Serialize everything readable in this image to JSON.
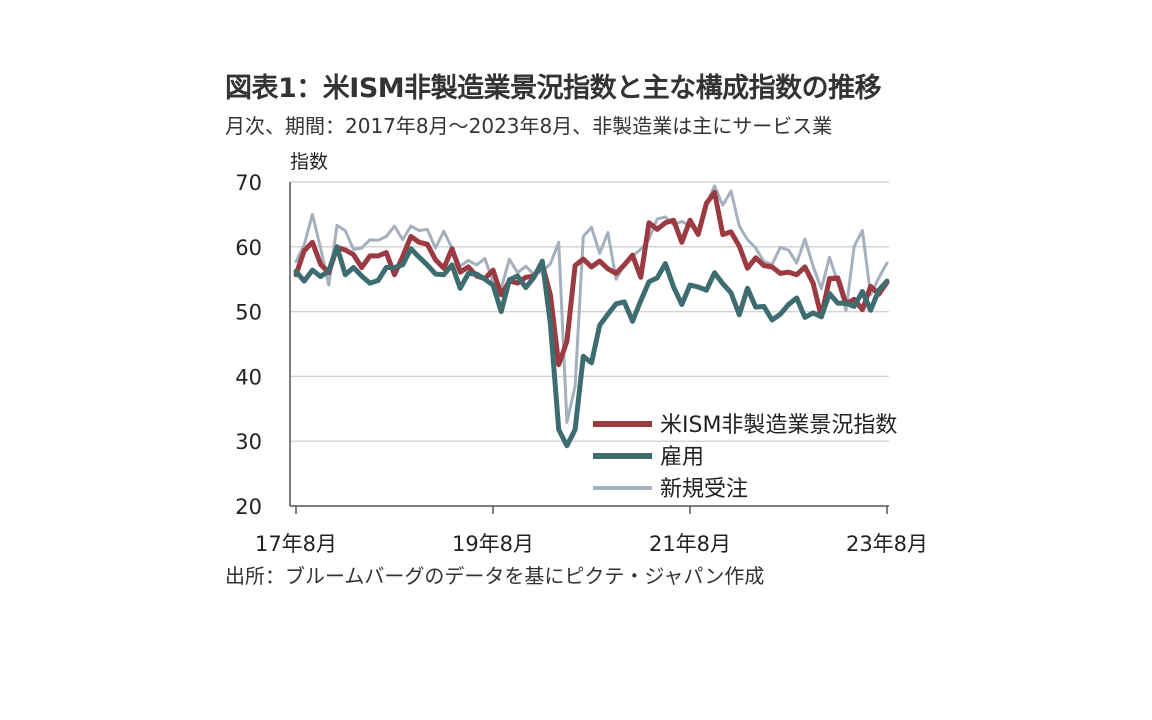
{
  "header": {
    "title": "図表1：米ISM非製造業景況指数と主な構成指数の推移",
    "subtitle": "月次、期間：2017年8月～2023年8月、非製造業は主にサービス業"
  },
  "footer": {
    "source": "出所：ブルームバーグのデータを基にピクテ・ジャパン作成"
  },
  "chart_data": {
    "type": "line",
    "ylabel": "指数",
    "xlabel": "",
    "ylim": [
      20,
      70
    ],
    "yticks": [
      20,
      30,
      40,
      50,
      60,
      70
    ],
    "xtick_labels": [
      "17年8月",
      "19年8月",
      "21年8月",
      "23年8月"
    ],
    "xtick_index": [
      0,
      24,
      48,
      72
    ],
    "grid": true,
    "legend_position": "lower-right",
    "x_start": "2017-08",
    "x_end": "2023-08",
    "series": [
      {
        "name": "米ISM非製造業景況指数",
        "color": "#9b3a40",
        "values": [
          55.7,
          59.4,
          60.7,
          57.3,
          56.0,
          59.9,
          59.5,
          58.8,
          56.8,
          58.6,
          58.6,
          59.1,
          55.7,
          58.5,
          61.6,
          60.7,
          60.4,
          58.0,
          56.7,
          59.7,
          56.1,
          56.9,
          55.5,
          55.1,
          56.4,
          52.6,
          54.7,
          54.4,
          55.3,
          55.5,
          57.3,
          52.5,
          41.8,
          45.4,
          57.1,
          58.1,
          56.9,
          57.8,
          56.6,
          55.9,
          57.2,
          58.7,
          55.3,
          63.7,
          62.7,
          63.7,
          64.1,
          60.7,
          64.1,
          61.9,
          66.7,
          68.4,
          61.9,
          62.3,
          60.1,
          56.7,
          58.3,
          57.1,
          56.9,
          55.9,
          56.1,
          55.7,
          56.9,
          54.4,
          49.2,
          55.1,
          55.2,
          51.2,
          51.9,
          50.3,
          53.9,
          52.7,
          54.5
        ],
        "width": 5
      },
      {
        "name": "雇用",
        "color": "#3d6d70",
        "values": [
          56.2,
          54.7,
          56.4,
          55.4,
          56.3,
          60.0,
          55.7,
          56.8,
          55.5,
          54.4,
          54.8,
          56.8,
          56.8,
          57.2,
          59.7,
          58.4,
          57.2,
          55.8,
          55.7,
          57.2,
          53.6,
          55.9,
          55.8,
          55.0,
          54.1,
          50.0,
          54.9,
          55.5,
          53.7,
          55.3,
          57.8,
          48.0,
          31.8,
          29.3,
          31.8,
          43.1,
          42.1,
          47.9,
          49.6,
          51.2,
          51.5,
          48.5,
          51.7,
          54.6,
          55.2,
          57.4,
          53.8,
          51.1,
          54.1,
          53.8,
          53.3,
          56.0,
          54.3,
          52.9,
          49.5,
          53.6,
          50.7,
          50.8,
          48.7,
          49.6,
          51.1,
          52.1,
          49.1,
          49.8,
          49.2,
          52.8,
          51.3,
          51.3,
          50.8,
          53.1,
          50.2,
          53.3,
          54.7
        ],
        "width": 5
      },
      {
        "name": "新規受注",
        "color": "#a5b0bf",
        "values": [
          57.7,
          60.3,
          65.0,
          59.8,
          54.1,
          63.3,
          62.5,
          59.6,
          59.8,
          61.1,
          61.0,
          61.6,
          63.2,
          61.1,
          63.2,
          62.5,
          62.7,
          59.8,
          62.4,
          59.8,
          57.0,
          57.9,
          57.2,
          58.2,
          54.6,
          53.6,
          58.1,
          56.0,
          57.0,
          55.7,
          56.2,
          57.4,
          60.7,
          32.9,
          38.5,
          61.6,
          63.0,
          59.0,
          62.2,
          55.0,
          57.2,
          58.6,
          59.6,
          61.2,
          64.3,
          64.6,
          63.4,
          63.9,
          63.3,
          62.3,
          66.6,
          69.4,
          66.4,
          68.6,
          63.2,
          61.1,
          59.8,
          57.7,
          57.3,
          59.9,
          59.5,
          57.5,
          61.2,
          57.0,
          53.5,
          58.4,
          54.5,
          50.2,
          60.1,
          62.5,
          52.6,
          55.2,
          57.5
        ],
        "width": 3
      }
    ]
  }
}
